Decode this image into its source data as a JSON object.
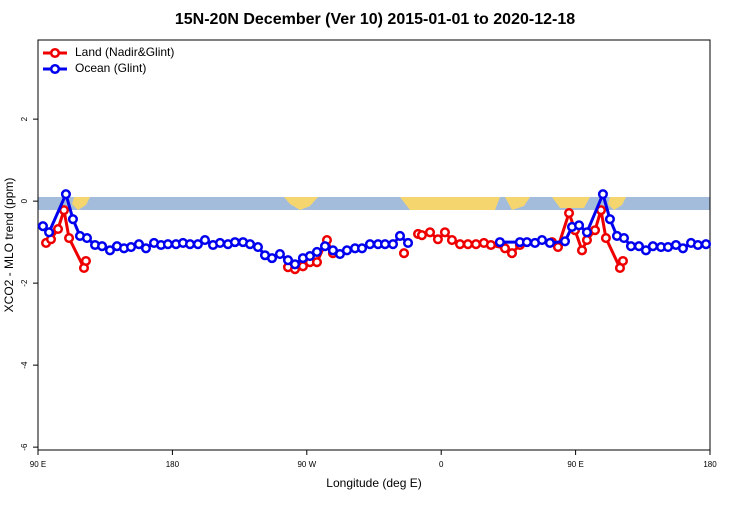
{
  "chart_data": {
    "type": "line",
    "title": "15N-20N December (Ver 10)   2015-01-01 to 2020-12-18",
    "x_label": "Longitude (deg E)",
    "y_label": "XCO2 - MLO trend (ppm)",
    "xlim": [
      90,
      540
    ],
    "ylim": [
      -6.07,
      3.93
    ],
    "xticks": [
      {
        "value": 90,
        "label": "90 E"
      },
      180,
      {
        "value": 270,
        "label": "90 W"
      },
      {
        "value": 360,
        "label": "0"
      },
      {
        "value": 450,
        "label": "90 E"
      },
      {
        "value": 540,
        "label": "180"
      }
    ],
    "yticks": [
      -6,
      -4,
      -2,
      0,
      2
    ],
    "legend_position": "top-left",
    "series": [
      {
        "name": "Land (Nadir&Glint)",
        "color": "#ee0000",
        "x": [
          95.4,
          98.7,
          103.4,
          107.4,
          110.8,
          120.8,
          122.1,
          null,
          257.4,
          262.1,
          267.4,
          272.1,
          276.8,
          283.5,
          287.5,
          null,
          335.1,
          null,
          344.5,
          347.1,
          352.5,
          357.8,
          362.5,
          367.2,
          372.6,
          377.9,
          383.3,
          388.6,
          393.3,
          402.7,
          407.4,
          412.7,
          null,
          434.2,
          438.2,
          445.6,
          449.6,
          454.3,
          457.6,
          463.0,
          467.0,
          470.3,
          479.7,
          481.7
        ],
        "values": [
          -1.02,
          -0.93,
          -0.68,
          -0.22,
          -0.9,
          -1.63,
          -1.46,
          null,
          -1.61,
          -1.66,
          -1.59,
          -1.49,
          -1.49,
          -0.95,
          -1.27,
          null,
          -1.27,
          null,
          -0.8,
          -0.83,
          -0.76,
          -0.93,
          -0.76,
          -0.95,
          -1.05,
          -1.05,
          -1.05,
          -1.02,
          -1.07,
          -1.15,
          -1.27,
          -1.07,
          null,
          -1.0,
          -1.12,
          -0.29,
          -0.71,
          -1.2,
          -0.95,
          -0.71,
          -0.22,
          -0.9,
          -1.63,
          -1.46
        ]
      },
      {
        "name": "Ocean (Glint)",
        "color": "#0000ee",
        "x": [
          93.3,
          97.4,
          108.7,
          113.4,
          118.1,
          122.8,
          128.2,
          132.9,
          138.2,
          142.9,
          147.6,
          152.3,
          157.6,
          162.3,
          167.7,
          172.4,
          177.0,
          182.4,
          187.1,
          191.8,
          197.1,
          201.8,
          207.2,
          211.9,
          217.2,
          221.9,
          227.3,
          232.0,
          237.3,
          242.0,
          246.7,
          252.0,
          257.4,
          262.1,
          267.4,
          272.1,
          276.8,
          282.2,
          287.5,
          292.2,
          296.9,
          302.3,
          307.0,
          312.3,
          317.7,
          322.4,
          327.7,
          332.4,
          337.8,
          null,
          399.3,
          412.7,
          417.4,
          422.8,
          427.5,
          432.8,
          442.9,
          447.6,
          452.3,
          457.6,
          468.3,
          473.0,
          477.7,
          482.4,
          487.1,
          492.4,
          497.1,
          501.8,
          507.2,
          511.9,
          517.2,
          521.9,
          527.3,
          531.9,
          537.3
        ],
        "values": [
          -0.61,
          -0.76,
          0.17,
          -0.44,
          -0.85,
          -0.9,
          -1.07,
          -1.1,
          -1.2,
          -1.1,
          -1.15,
          -1.12,
          -1.05,
          -1.15,
          -1.02,
          -1.07,
          -1.05,
          -1.05,
          -1.02,
          -1.05,
          -1.05,
          -0.95,
          -1.07,
          -1.02,
          -1.05,
          -1.0,
          -1.0,
          -1.05,
          -1.12,
          -1.32,
          -1.39,
          -1.29,
          -1.44,
          -1.54,
          -1.39,
          -1.34,
          -1.24,
          -1.1,
          -1.2,
          -1.29,
          -1.2,
          -1.15,
          -1.15,
          -1.05,
          -1.05,
          -1.05,
          -1.05,
          -0.85,
          -1.02,
          null,
          -1.0,
          -1.0,
          -1.0,
          -1.02,
          -0.95,
          -1.02,
          -0.98,
          -0.63,
          -0.59,
          -0.76,
          0.17,
          -0.44,
          -0.85,
          -0.9,
          -1.1,
          -1.1,
          -1.2,
          -1.1,
          -1.12,
          -1.12,
          -1.07,
          -1.15,
          -1.02,
          -1.07,
          -1.05
        ]
      }
    ]
  }
}
